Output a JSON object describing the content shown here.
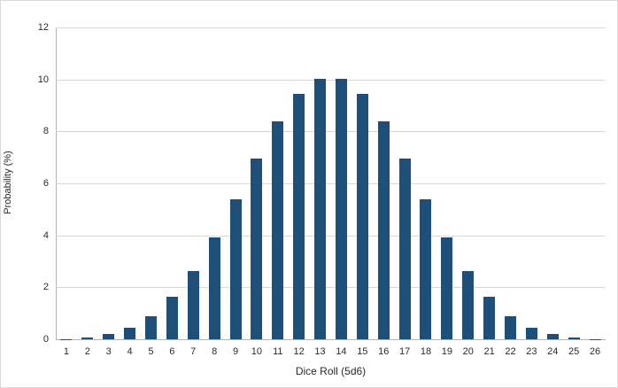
{
  "chart_data": {
    "type": "bar",
    "title": "",
    "xlabel": "Dice Roll (5d6)",
    "ylabel": "Probability (%)",
    "categories": [
      1,
      2,
      3,
      4,
      5,
      6,
      7,
      8,
      9,
      10,
      11,
      12,
      13,
      14,
      15,
      16,
      17,
      18,
      19,
      20,
      21,
      22,
      23,
      24,
      25,
      26
    ],
    "values": [
      0.013,
      0.064,
      0.193,
      0.45,
      0.9,
      1.62,
      2.637,
      3.923,
      5.402,
      6.944,
      8.372,
      9.452,
      10.031,
      10.031,
      9.452,
      8.372,
      6.944,
      5.402,
      3.923,
      2.637,
      1.62,
      0.9,
      0.45,
      0.193,
      0.064,
      0.013
    ],
    "ylim": [
      0,
      12
    ],
    "ytick_step": 2,
    "grid": true,
    "legend": "none",
    "bar_color": "#1F4E79",
    "grid_color": "#d9d9d9",
    "axis_color": "#b3b3b3",
    "text_color": "#2b2b2b",
    "background_color": "#ffffff"
  }
}
